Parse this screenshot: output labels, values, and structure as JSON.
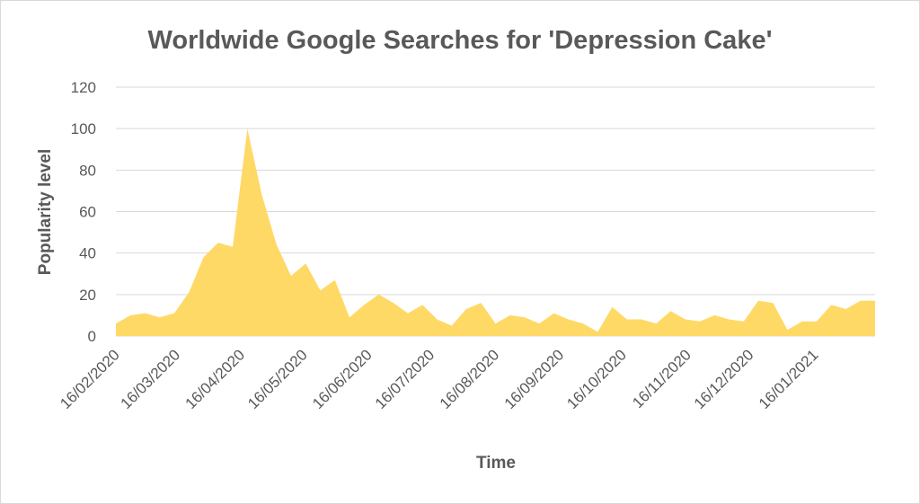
{
  "chart_data": {
    "type": "area",
    "title": "Worldwide Google Searches for  'Depression Cake'",
    "xlabel": "Time",
    "ylabel": "Popularity level",
    "ylim": [
      0,
      120
    ],
    "yticks": [
      "0",
      "20",
      "40",
      "60",
      "80",
      "100",
      "120"
    ],
    "grid": true,
    "legend": "none",
    "color": "#ffd966",
    "xlim": [
      "2020-02-16",
      "2021-02-14"
    ],
    "xtick_labels": [
      {
        "date": "2020-02-16",
        "label": "16/02/2020"
      },
      {
        "date": "2020-03-16",
        "label": "16/03/2020"
      },
      {
        "date": "2020-04-16",
        "label": "16/04/2020"
      },
      {
        "date": "2020-05-16",
        "label": "16/05/2020"
      },
      {
        "date": "2020-06-16",
        "label": "16/06/2020"
      },
      {
        "date": "2020-07-16",
        "label": "16/07/2020"
      },
      {
        "date": "2020-08-16",
        "label": "16/08/2020"
      },
      {
        "date": "2020-09-16",
        "label": "16/09/2020"
      },
      {
        "date": "2020-10-16",
        "label": "16/10/2020"
      },
      {
        "date": "2020-11-16",
        "label": "16/11/2020"
      },
      {
        "date": "2020-12-16",
        "label": "16/12/2020"
      },
      {
        "date": "2021-01-16",
        "label": "16/01/2021"
      }
    ],
    "x": [
      "2020-02-16",
      "2020-02-23",
      "2020-03-01",
      "2020-03-08",
      "2020-03-15",
      "2020-03-22",
      "2020-03-29",
      "2020-04-05",
      "2020-04-12",
      "2020-04-19",
      "2020-04-26",
      "2020-05-03",
      "2020-05-10",
      "2020-05-17",
      "2020-05-24",
      "2020-05-31",
      "2020-06-07",
      "2020-06-14",
      "2020-06-21",
      "2020-06-28",
      "2020-07-05",
      "2020-07-12",
      "2020-07-19",
      "2020-07-26",
      "2020-08-02",
      "2020-08-09",
      "2020-08-16",
      "2020-08-23",
      "2020-08-30",
      "2020-09-06",
      "2020-09-13",
      "2020-09-20",
      "2020-09-27",
      "2020-10-04",
      "2020-10-11",
      "2020-10-18",
      "2020-10-25",
      "2020-11-01",
      "2020-11-08",
      "2020-11-15",
      "2020-11-22",
      "2020-11-29",
      "2020-12-06",
      "2020-12-13",
      "2020-12-20",
      "2020-12-27",
      "2021-01-03",
      "2021-01-10",
      "2021-01-17",
      "2021-01-24",
      "2021-01-31",
      "2021-02-07",
      "2021-02-14"
    ],
    "values": [
      6,
      10,
      11,
      9,
      11,
      21,
      38,
      45,
      43,
      100,
      68,
      44,
      29,
      35,
      22,
      27,
      9,
      15,
      20,
      16,
      11,
      15,
      8,
      5,
      13,
      16,
      6,
      10,
      9,
      6,
      11,
      8,
      6,
      2,
      14,
      8,
      8,
      6,
      12,
      8,
      7,
      10,
      8,
      7,
      17,
      16,
      3,
      7,
      7,
      15,
      13,
      17,
      17
    ]
  }
}
